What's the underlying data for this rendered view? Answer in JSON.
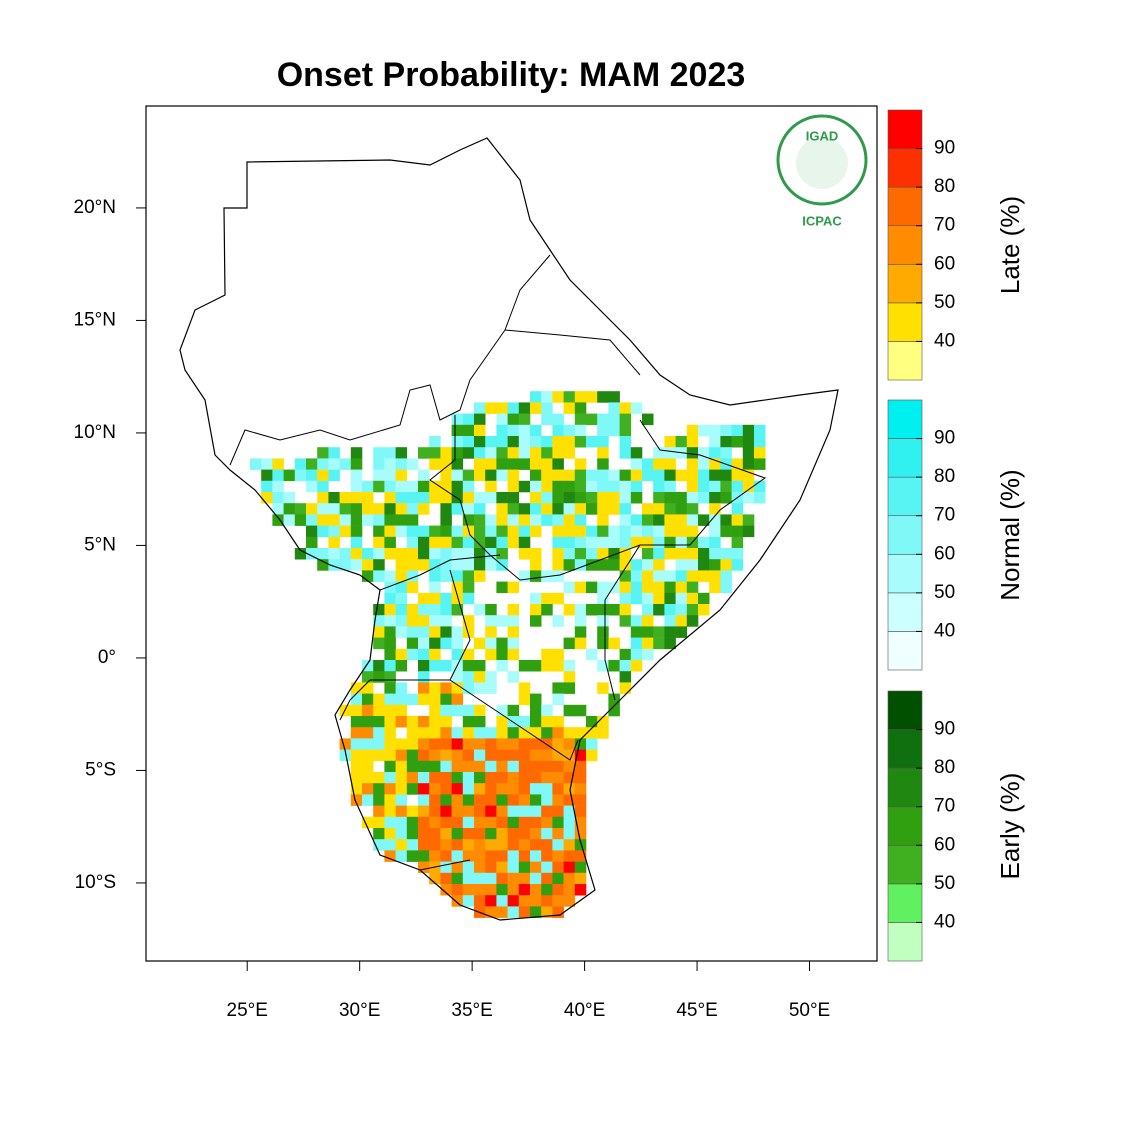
{
  "chart_data": {
    "type": "map",
    "title": "Onset Probability: MAM 2023",
    "xlim": [
      20.5,
      53.0
    ],
    "ylim": [
      -13.47,
      24.53
    ],
    "xticks": [
      {
        "value": 25,
        "label": "25°E"
      },
      {
        "value": 30,
        "label": "30°E"
      },
      {
        "value": 35,
        "label": "35°E"
      },
      {
        "value": 40,
        "label": "40°E"
      },
      {
        "value": 45,
        "label": "45°E"
      },
      {
        "value": 50,
        "label": "50°E"
      }
    ],
    "yticks": [
      {
        "value": 20,
        "label": "20°N"
      },
      {
        "value": 15,
        "label": "15°N"
      },
      {
        "value": 10,
        "label": "10°N"
      },
      {
        "value": 5,
        "label": "5°N"
      },
      {
        "value": 0,
        "label": "0°"
      },
      {
        "value": -5,
        "label": "5°S"
      },
      {
        "value": -10,
        "label": "10°S"
      }
    ],
    "logo": {
      "name": "IGAD",
      "caption": "ICPAC"
    },
    "legends": [
      {
        "label": "Late (%)",
        "range": [
          30,
          100
        ],
        "ticks": [
          40,
          50,
          60,
          70,
          80,
          90
        ],
        "colors": [
          "#ffff80",
          "#ffe000",
          "#ffaa00",
          "#ff8c00",
          "#ff6a00",
          "#ff3000",
          "#ff0000"
        ]
      },
      {
        "label": "Normal (%)",
        "range": [
          30,
          100
        ],
        "ticks": [
          40,
          50,
          60,
          70,
          80,
          90
        ],
        "colors": [
          "#f0ffff",
          "#ccffff",
          "#a8fcfc",
          "#80f8f8",
          "#58f4f4",
          "#30f0f0",
          "#00f0f0"
        ]
      },
      {
        "label": "Early (%)",
        "range": [
          30,
          100
        ],
        "ticks": [
          40,
          50,
          60,
          70,
          80,
          90
        ],
        "colors": [
          "#c0ffc0",
          "#60f060",
          "#40b020",
          "#30a010",
          "#208810",
          "#107010",
          "#005000"
        ]
      }
    ]
  }
}
